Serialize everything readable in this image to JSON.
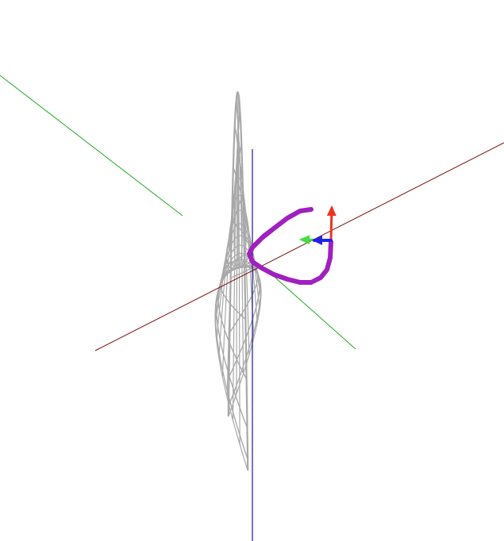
{
  "scene": {
    "type": "3d-wireframe",
    "surface": {
      "name": "saddle-surface",
      "equation": "",
      "mesh_color": "#a8a8a8",
      "radial_lines": 36,
      "circular_rings": 14
    },
    "axes": [
      {
        "name": "x-axis",
        "color": "#7a1010"
      },
      {
        "name": "y-axis",
        "color": "#22aa22"
      },
      {
        "name": "z-axis",
        "color": "#1a1a8c"
      }
    ],
    "path": {
      "name": "geodesic-path",
      "color": "#a020c0"
    },
    "frame_arrows": [
      {
        "name": "tangent-arrow",
        "color": "#2222ee"
      },
      {
        "name": "normal-arrow",
        "color": "#ee3322"
      },
      {
        "name": "binormal-arrow",
        "color": "#44dd44"
      }
    ]
  }
}
